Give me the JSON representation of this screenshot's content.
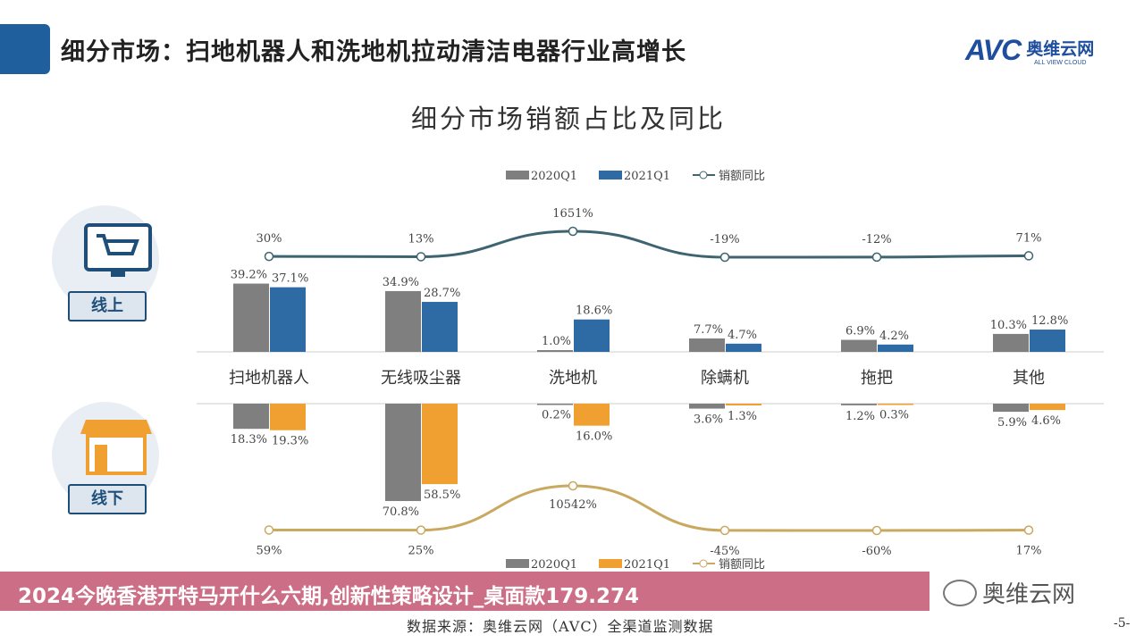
{
  "header": {
    "title": "细分市场：扫地机器人和洗地机拉动清洁电器行业高增长",
    "logo_text": "AVC",
    "logo_cn": "奥维云网",
    "logo_en": "ALL VIEW CLOUD"
  },
  "channels": {
    "online": "线上",
    "offline": "线下"
  },
  "banner": {
    "text": "2024今晚香港开特马开什么六期,创新性策略设计_桌面款179.274"
  },
  "footer": {
    "source": "数据来源：奥维云网（AVC）全渠道监测数据",
    "page": "-5-",
    "wechat": "奥维云网"
  },
  "colors": {
    "q2020": "#7f7f7f",
    "online_q2021": "#2e6aa3",
    "offline_q2021": "#f0a030",
    "online_line": "#3d6470",
    "offline_line": "#c9a860"
  },
  "chart_data": {
    "type": "bar",
    "title": "细分市场销额占比及同比",
    "categories": [
      "扫地机器人",
      "无线吸尘器",
      "洗地机",
      "除螨机",
      "拖把",
      "其他"
    ],
    "charts": [
      {
        "name": "online",
        "legend": [
          "2020Q1",
          "2021Q1",
          "销额同比"
        ],
        "series": [
          {
            "name": "2020Q1",
            "values": [
              39.2,
              34.9,
              1.0,
              7.7,
              6.9,
              10.3
            ],
            "labels": [
              "39.2%",
              "34.9%",
              "1.0%",
              "7.7%",
              "6.9%",
              "10.3%"
            ]
          },
          {
            "name": "2021Q1",
            "values": [
              37.1,
              28.7,
              18.6,
              4.7,
              4.2,
              12.8
            ],
            "labels": [
              "37.1%",
              "28.7%",
              "18.6%",
              "4.7%",
              "4.2%",
              "12.8%"
            ]
          }
        ],
        "line": {
          "name": "销额同比",
          "values": [
            30,
            13,
            1651,
            -19,
            -12,
            71
          ],
          "labels": [
            "30%",
            "13%",
            "1651%",
            "-19%",
            "-12%",
            "71%"
          ]
        }
      },
      {
        "name": "offline",
        "legend": [
          "2020Q1",
          "2021Q1",
          "销额同比"
        ],
        "series": [
          {
            "name": "2020Q1",
            "values": [
              18.3,
              70.8,
              0.2,
              3.6,
              1.2,
              5.9
            ],
            "labels": [
              "18.3%",
              "70.8%",
              "0.2%",
              "3.6%",
              "1.2%",
              "5.9%"
            ]
          },
          {
            "name": "2021Q1",
            "values": [
              19.3,
              58.5,
              16.0,
              1.3,
              0.3,
              4.6
            ],
            "labels": [
              "19.3%",
              "58.5%",
              "16.0%",
              "1.3%",
              "0.3%",
              "4.6%"
            ]
          }
        ],
        "line": {
          "name": "销额同比",
          "values": [
            59,
            25,
            10542,
            -45,
            -60,
            17
          ],
          "labels": [
            "59%",
            "25%",
            "10542%",
            "-45%",
            "-60%",
            "17%"
          ]
        }
      }
    ]
  }
}
